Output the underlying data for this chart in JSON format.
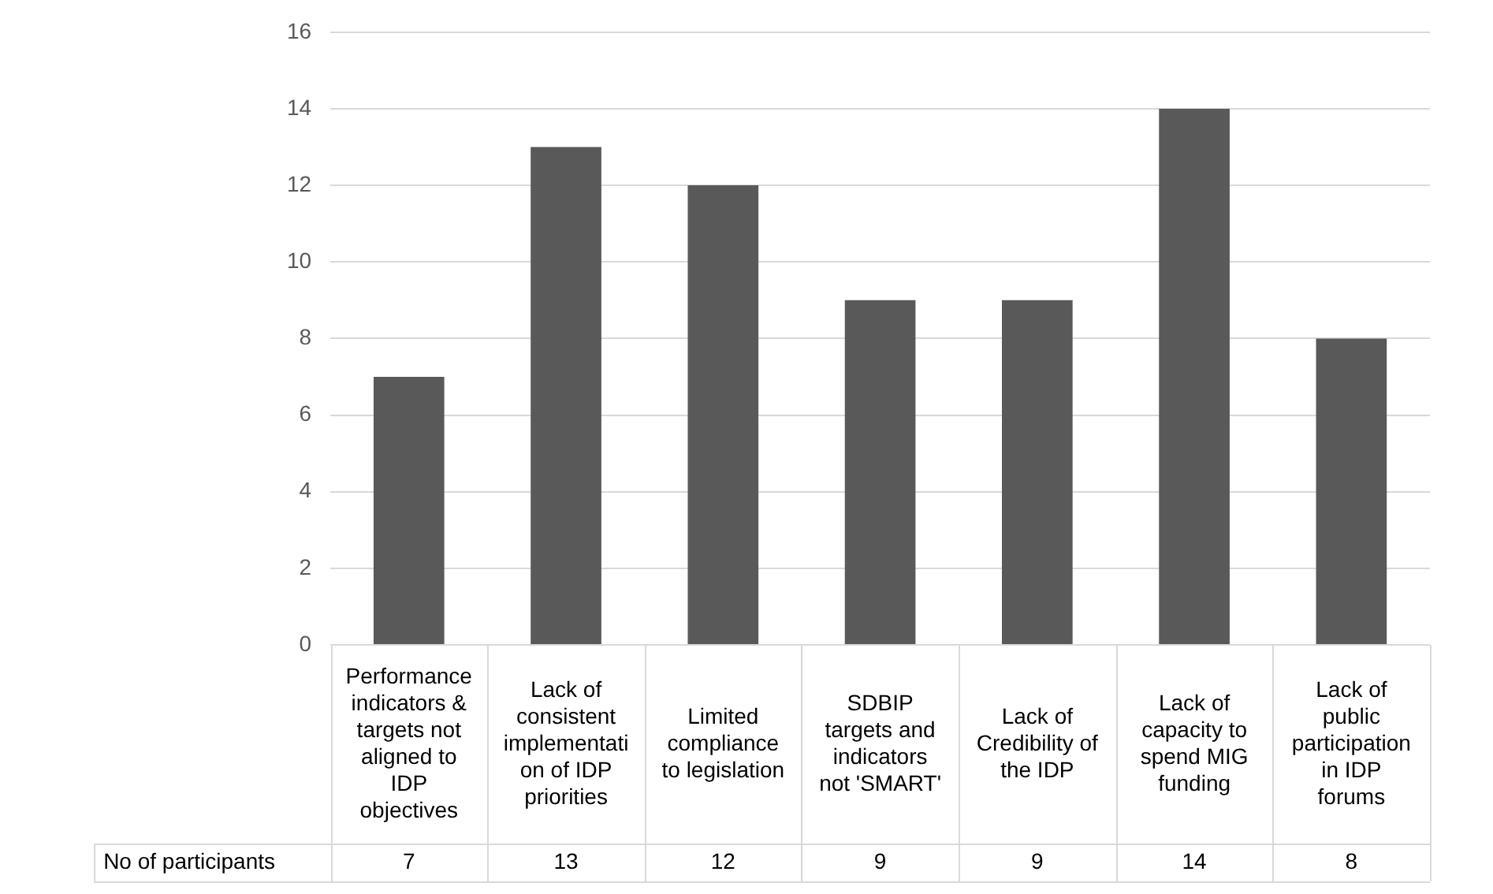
{
  "chart_data": {
    "type": "bar",
    "categories": [
      "Performance indicators & targets not aligned to IDP objectives",
      "Lack of consistent implementation of IDP priorities",
      "Limited compliance to legislation",
      "SDBIP targets and indicators not 'SMART'",
      "Lack of Credibility of the IDP",
      "Lack of capacity to spend MIG funding",
      "Lack of public participation in IDP forums"
    ],
    "series": [
      {
        "name": "No of participants",
        "color": "#595959",
        "values": [
          7,
          13,
          12,
          9,
          9,
          14,
          8
        ]
      }
    ],
    "ylim": [
      0,
      16
    ],
    "yticks": [
      0,
      2,
      4,
      6,
      8,
      10,
      12,
      14,
      16
    ],
    "grid": "y",
    "legend": false,
    "data_labels": true
  }
}
